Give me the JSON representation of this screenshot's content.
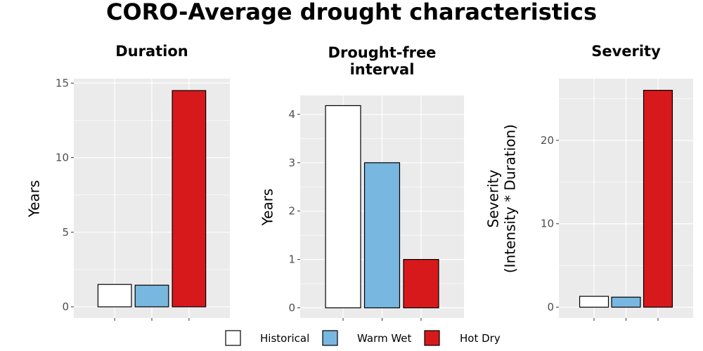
{
  "title": "CORO-Average drought characteristics",
  "colors": {
    "panel_background": "#EBEBEB",
    "grid": "#FFFFFF",
    "bar_outline": "#000000"
  },
  "legend": {
    "items": [
      {
        "label": "Historical",
        "color": "#FFFFFF"
      },
      {
        "label": "Warm Wet",
        "color": "#78B7E0"
      },
      {
        "label": "Hot Dry",
        "color": "#D7191C"
      }
    ],
    "position": "bottom"
  },
  "chart_data": [
    {
      "type": "bar",
      "title": "Duration",
      "title_lines": [
        "Duration"
      ],
      "ylabel_lines": [
        "Years"
      ],
      "categories": [
        "Historical",
        "Warm Wet",
        "Hot Dry"
      ],
      "values": [
        1.5,
        1.45,
        14.5
      ],
      "ylim": [
        -0.75,
        15.3
      ],
      "yticks": [
        0,
        5,
        10,
        15
      ],
      "ytick_labels": [
        "0",
        "5",
        "10",
        "15"
      ],
      "grid": true
    },
    {
      "type": "bar",
      "title": "Drought-free interval",
      "title_lines": [
        "Drought-free",
        "interval"
      ],
      "ylabel_lines": [
        "Years"
      ],
      "categories": [
        "Historical",
        "Warm Wet",
        "Hot Dry"
      ],
      "values": [
        4.18,
        3.0,
        1.0
      ],
      "ylim": [
        -0.21,
        4.39
      ],
      "yticks": [
        0,
        1,
        2,
        3,
        4
      ],
      "ytick_labels": [
        "0",
        "1",
        "2",
        "3",
        "4"
      ],
      "grid": true
    },
    {
      "type": "bar",
      "title": "Severity",
      "title_lines": [
        "Severity"
      ],
      "ylabel_lines": [
        "Severity",
        "(Intensity * Duration)"
      ],
      "categories": [
        "Historical",
        "Warm Wet",
        "Hot Dry"
      ],
      "values": [
        1.3,
        1.2,
        26.0
      ],
      "ylim": [
        -1.3,
        27.4
      ],
      "yticks": [
        0,
        10,
        20
      ],
      "ytick_labels": [
        "0",
        "10",
        "20"
      ],
      "grid": true
    }
  ]
}
